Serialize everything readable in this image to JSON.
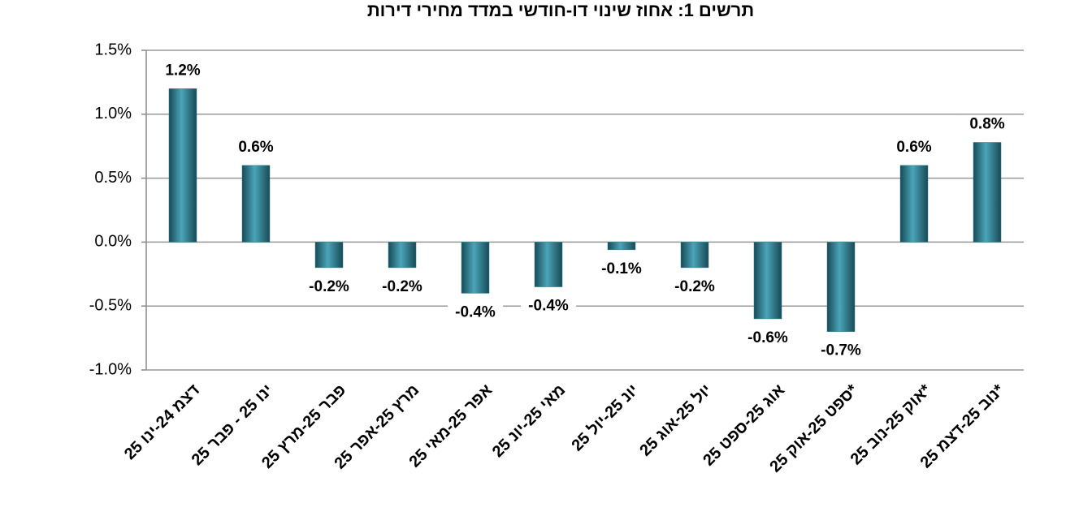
{
  "chart_data": {
    "type": "bar",
    "title": "תרשים 1: אחוז שינוי דו-חודשי במדד מחירי דירות",
    "categories": [
      "דצמ 24-ינו 25",
      "ינו 25 - פבר 25",
      "פבר 25-מרץ 25",
      "מרץ 25-אפר 25",
      "אפר 25-מאי 25",
      "מאי 25-יונ 25",
      "יונ 25-יול 25",
      "יול 25-אוג 25",
      "אוג 25-ספט 25",
      "ספט 25-אוק 25*",
      "אוק 25-נוב 25*",
      "נוב 25-דצמ 25*"
    ],
    "values": [
      1.2,
      0.6,
      -0.2,
      -0.2,
      -0.4,
      -0.35,
      -0.06,
      -0.2,
      -0.6,
      -0.7,
      0.6,
      0.78
    ],
    "value_labels": [
      "1.2%",
      "0.6%",
      "-0.2%",
      "-0.2%",
      "-0.4%",
      "-0.4%",
      "-0.1%",
      "-0.2%",
      "-0.6%",
      "-0.7%",
      "0.6%",
      "0.8%"
    ],
    "color": "#2f8597",
    "ylim": [
      -1.0,
      1.5
    ],
    "yticks": [
      {
        "value": -1.0,
        "label": "-1.0%"
      },
      {
        "value": -0.5,
        "label": "-0.5%"
      },
      {
        "value": 0,
        "label": "0.0%"
      },
      {
        "value": 0.5,
        "label": "0.5%"
      },
      {
        "value": 1.0,
        "label": "1.0%"
      },
      {
        "value": 1.5,
        "label": "1.5%"
      }
    ],
    "grid": true
  }
}
